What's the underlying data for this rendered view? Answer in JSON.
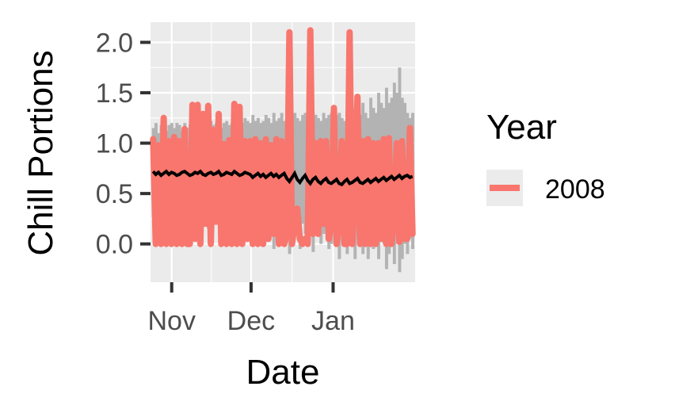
{
  "chart_data": {
    "type": "line",
    "title": "",
    "xlabel": "Date",
    "ylabel": "Chill Portions",
    "x_start": "2008-10-25",
    "x_end": "2009-01-31",
    "xlim": [
      "2008-10-24",
      "2009-02-01"
    ],
    "ylim": [
      -0.38,
      2.2
    ],
    "y_ticks": [
      0.0,
      0.5,
      1.0,
      1.5,
      2.0
    ],
    "y_tick_labels": [
      "0.0",
      "0.5",
      "1.0",
      "1.5",
      "2.0"
    ],
    "x_ticks": [
      "2008-11-01",
      "2008-12-01",
      "2009-01-01"
    ],
    "x_tick_labels": [
      "Nov",
      "Dec",
      "Jan"
    ],
    "grid": true,
    "legend": {
      "title": "Year",
      "placement": "right",
      "entries": [
        "2008"
      ]
    },
    "colors": {
      "series": "#f8766d",
      "ribbon": "#b3b3b3",
      "mean": "#000000",
      "panel": "#ebebeb",
      "grid": "#ffffff"
    },
    "series": [
      {
        "name": "2008",
        "values": [
          1.04,
          0.0,
          0.98,
          0.0,
          1.25,
          0.0,
          1.02,
          0.0,
          1.06,
          0.0,
          1.02,
          0.0,
          1.14,
          0.0,
          0.0,
          1.38,
          0.05,
          1.38,
          0.0,
          1.29,
          0.2,
          1.37,
          0.0,
          1.13,
          0.22,
          1.29,
          0.0,
          0.99,
          0.0,
          1.03,
          0.0,
          1.39,
          0.0,
          1.36,
          0.0,
          1.02,
          0.05,
          1.02,
          0.0,
          1.04,
          0.0,
          1.0,
          0.0,
          1.04,
          0.05,
          0.98,
          0.1,
          1.04,
          0.0,
          1.02,
          0.0,
          0.1,
          2.1,
          0.0,
          0.2,
          0.35,
          0.05,
          0.0,
          0.05,
          0.0,
          2.12,
          0.1,
          1.0,
          0.1,
          1.02,
          0.2,
          1.02,
          0.05,
          0.2,
          1.35,
          0.0,
          0.2,
          1.02,
          0.0,
          0.0,
          2.1,
          0.0,
          0.5,
          1.46,
          0.0,
          1.02,
          0.0,
          1.04,
          0.0,
          1.0,
          0.0,
          1.0,
          0.05,
          1.04,
          0.0,
          1.05,
          0.0,
          0.25,
          1.0,
          0.02,
          1.02,
          0.05,
          0.05,
          1.15,
          0.1
        ]
      }
    ],
    "mean_line": [
      0.72,
      0.69,
      0.71,
      0.68,
      0.7,
      0.72,
      0.69,
      0.71,
      0.7,
      0.68,
      0.69,
      0.71,
      0.72,
      0.7,
      0.68,
      0.69,
      0.71,
      0.7,
      0.72,
      0.69,
      0.68,
      0.7,
      0.71,
      0.69,
      0.7,
      0.72,
      0.68,
      0.69,
      0.71,
      0.7,
      0.69,
      0.72,
      0.7,
      0.68,
      0.69,
      0.71,
      0.7,
      0.69,
      0.66,
      0.68,
      0.7,
      0.67,
      0.69,
      0.66,
      0.68,
      0.7,
      0.67,
      0.69,
      0.66,
      0.68,
      0.7,
      0.65,
      0.62,
      0.66,
      0.7,
      0.64,
      0.61,
      0.65,
      0.68,
      0.63,
      0.6,
      0.64,
      0.66,
      0.62,
      0.6,
      0.63,
      0.65,
      0.61,
      0.6,
      0.62,
      0.64,
      0.6,
      0.59,
      0.62,
      0.64,
      0.6,
      0.61,
      0.63,
      0.65,
      0.61,
      0.6,
      0.62,
      0.64,
      0.61,
      0.63,
      0.65,
      0.62,
      0.64,
      0.66,
      0.63,
      0.65,
      0.67,
      0.64,
      0.66,
      0.68,
      0.65,
      0.67,
      0.68,
      0.66,
      0.67
    ],
    "ribbon_low": [
      0.3,
      0.2,
      0.35,
      0.1,
      0.3,
      0.2,
      0.3,
      0.1,
      0.3,
      0.2,
      0.3,
      0.15,
      0.3,
      0.2,
      0.3,
      0.2,
      0.3,
      0.1,
      0.3,
      0.2,
      0.3,
      0.15,
      0.3,
      0.2,
      0.3,
      0.2,
      0.3,
      0.1,
      0.25,
      0.2,
      0.3,
      0.1,
      0.2,
      0.25,
      0.3,
      0.1,
      0.2,
      0.3,
      0.05,
      0.2,
      0.25,
      0.1,
      0.2,
      0.3,
      0.1,
      0.25,
      -0.05,
      0.2,
      0.1,
      0.0,
      0.2,
      0.1,
      -0.1,
      0.15,
      0.2,
      0.1,
      -0.05,
      0.2,
      0.1,
      0.0,
      0.2,
      -0.08,
      0.1,
      0.2,
      0.0,
      0.1,
      0.2,
      -0.05,
      0.0,
      0.2,
      0.1,
      -0.15,
      0.1,
      0.0,
      -0.1,
      0.1,
      0.0,
      -0.15,
      0.05,
      0.1,
      -0.1,
      0.0,
      -0.15,
      0.1,
      -0.05,
      0.0,
      -0.15,
      0.05,
      0.0,
      -0.25,
      -0.1,
      0.05,
      -0.2,
      0.0,
      -0.28,
      -0.15,
      0.0,
      -0.1,
      0.05,
      -0.05
    ],
    "ribbon_high": [
      1.15,
      1.2,
      1.1,
      1.18,
      1.2,
      1.12,
      1.18,
      1.2,
      1.15,
      1.2,
      1.18,
      1.12,
      1.2,
      1.15,
      1.18,
      1.2,
      1.15,
      1.2,
      1.18,
      1.25,
      1.2,
      1.15,
      1.22,
      1.18,
      1.2,
      1.25,
      1.15,
      1.2,
      1.22,
      1.18,
      1.2,
      1.25,
      1.22,
      1.3,
      1.2,
      1.25,
      1.22,
      1.2,
      1.28,
      1.22,
      1.25,
      1.2,
      1.22,
      1.28,
      1.25,
      1.2,
      1.3,
      1.22,
      1.25,
      1.3,
      1.22,
      1.28,
      1.25,
      1.2,
      1.3,
      1.25,
      1.22,
      1.28,
      1.3,
      1.25,
      1.22,
      1.3,
      1.28,
      1.25,
      1.22,
      1.3,
      1.25,
      1.28,
      1.3,
      1.25,
      1.28,
      1.3,
      1.25,
      1.22,
      1.3,
      1.28,
      1.25,
      1.35,
      1.3,
      1.28,
      1.4,
      1.3,
      1.25,
      1.45,
      1.35,
      1.3,
      1.5,
      1.4,
      1.35,
      1.55,
      1.4,
      1.45,
      1.6,
      1.5,
      1.75,
      1.45,
      1.4,
      1.3,
      1.25,
      1.3
    ]
  }
}
